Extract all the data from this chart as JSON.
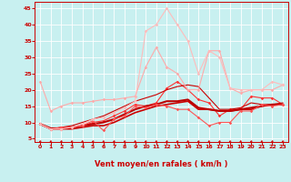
{
  "xlabel": "Vent moyen/en rafales ( km/h )",
  "bg_color": "#c8f0f0",
  "grid_color": "#ffffff",
  "xlim": [
    -0.5,
    23.5
  ],
  "ylim": [
    4,
    47
  ],
  "yticks": [
    5,
    10,
    15,
    20,
    25,
    30,
    35,
    40,
    45
  ],
  "xticks": [
    0,
    1,
    2,
    3,
    4,
    5,
    6,
    7,
    8,
    9,
    10,
    11,
    12,
    13,
    14,
    15,
    16,
    17,
    18,
    19,
    20,
    21,
    22,
    23
  ],
  "lines": [
    {
      "x": [
        0,
        1,
        2,
        3,
        4,
        5,
        6,
        7,
        8,
        9,
        10,
        11,
        12,
        13,
        14,
        15,
        16,
        17,
        18,
        19,
        20,
        21,
        22,
        23
      ],
      "y": [
        9.5,
        8.0,
        8.0,
        8.0,
        8.5,
        9.0,
        9.0,
        10.0,
        11.5,
        13.0,
        14.0,
        15.0,
        15.5,
        16.0,
        16.5,
        14.0,
        14.0,
        13.5,
        13.5,
        14.0,
        14.0,
        15.0,
        15.5,
        15.5
      ],
      "color": "#cc0000",
      "lw": 1.2,
      "marker": null,
      "ms": 0
    },
    {
      "x": [
        0,
        1,
        2,
        3,
        4,
        5,
        6,
        7,
        8,
        9,
        10,
        11,
        12,
        13,
        14,
        15,
        16,
        17,
        18,
        19,
        20,
        21,
        22,
        23
      ],
      "y": [
        9.5,
        8.0,
        8.0,
        8.5,
        9.0,
        10.0,
        10.5,
        12.0,
        13.5,
        15.5,
        15.0,
        16.0,
        20.5,
        22.5,
        20.0,
        17.0,
        16.0,
        12.0,
        14.0,
        14.0,
        18.0,
        17.5,
        17.5,
        15.5
      ],
      "color": "#ff3333",
      "lw": 0.8,
      "marker": "D",
      "ms": 1.8
    },
    {
      "x": [
        0,
        1,
        2,
        3,
        4,
        5,
        6,
        7,
        8,
        9,
        10,
        11,
        12,
        13,
        14,
        15,
        16,
        17,
        18,
        19,
        20,
        21,
        22,
        23
      ],
      "y": [
        9.5,
        8.0,
        8.5,
        9.0,
        10.0,
        11.0,
        12.0,
        13.5,
        15.0,
        16.5,
        17.5,
        18.5,
        20.0,
        21.0,
        21.5,
        21.0,
        17.5,
        14.0,
        14.0,
        14.5,
        16.0,
        15.5,
        15.5,
        16.0
      ],
      "color": "#cc0000",
      "lw": 0.8,
      "marker": null,
      "ms": 0
    },
    {
      "x": [
        0,
        1,
        2,
        3,
        4,
        5,
        6,
        7,
        8,
        9,
        10,
        11,
        12,
        13,
        14,
        15,
        16,
        17,
        18,
        19,
        20,
        21,
        22,
        23
      ],
      "y": [
        9.5,
        8.2,
        8.2,
        8.5,
        9.0,
        9.5,
        10.0,
        11.0,
        12.5,
        14.0,
        15.0,
        15.5,
        16.5,
        16.5,
        17.0,
        14.5,
        14.0,
        13.5,
        13.5,
        14.0,
        14.5,
        15.0,
        15.5,
        15.5
      ],
      "color": "#bb0000",
      "lw": 1.5,
      "marker": null,
      "ms": 0
    },
    {
      "x": [
        0,
        1,
        2,
        3,
        4,
        5,
        6,
        7,
        8,
        9,
        10,
        11,
        12,
        13,
        14,
        15,
        16,
        17,
        18,
        19,
        20,
        21,
        22,
        23
      ],
      "y": [
        22.5,
        13.5,
        15.0,
        16.0,
        16.0,
        16.5,
        17.0,
        17.0,
        17.5,
        18.0,
        27.0,
        33.0,
        27.0,
        25.0,
        20.0,
        20.0,
        32.0,
        32.0,
        20.5,
        19.0,
        20.0,
        20.0,
        20.0,
        21.5
      ],
      "color": "#ffaaaa",
      "lw": 0.8,
      "marker": "D",
      "ms": 1.8
    },
    {
      "x": [
        0,
        1,
        2,
        3,
        4,
        5,
        6,
        7,
        8,
        9,
        10,
        11,
        12,
        13,
        14,
        15,
        16,
        17,
        18,
        19,
        20,
        21,
        22,
        23
      ],
      "y": [
        9.5,
        8.0,
        8.5,
        8.5,
        9.0,
        10.5,
        7.5,
        11.0,
        12.0,
        15.0,
        14.5,
        15.5,
        15.0,
        14.0,
        14.0,
        11.5,
        9.0,
        10.0,
        10.0,
        13.5,
        13.5,
        15.5,
        15.0,
        15.5
      ],
      "color": "#ff5555",
      "lw": 0.8,
      "marker": "D",
      "ms": 1.8
    },
    {
      "x": [
        0,
        1,
        2,
        3,
        4,
        5,
        6,
        7,
        8,
        9,
        10,
        11,
        12,
        13,
        14,
        15,
        16,
        17,
        18,
        19,
        20,
        21,
        22,
        23
      ],
      "y": [
        9.5,
        8.0,
        8.0,
        8.5,
        9.5,
        11.0,
        11.5,
        13.0,
        14.5,
        16.5,
        38.0,
        40.0,
        45.0,
        40.0,
        35.0,
        25.0,
        32.0,
        30.0,
        20.5,
        20.0,
        20.0,
        20.0,
        22.5,
        21.5
      ],
      "color": "#ffbbbb",
      "lw": 0.8,
      "marker": "D",
      "ms": 1.8
    }
  ],
  "tick_fontsize": 4.5,
  "label_fontsize": 6.0
}
